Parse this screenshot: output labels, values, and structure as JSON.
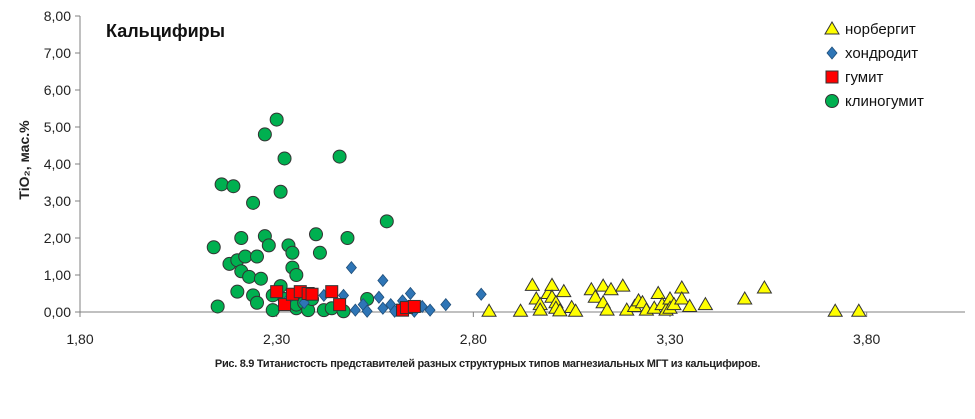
{
  "chart_data": {
    "type": "scatter",
    "title": "Кальцифиры",
    "ylabel": "TiO₂, мас.%",
    "xlabel": "",
    "xlim": [
      1.8,
      4.05
    ],
    "ylim": [
      0,
      8
    ],
    "xticks": [
      "1,80",
      "2,30",
      "2,80",
      "3,30",
      "3,80"
    ],
    "xtick_values": [
      1.8,
      2.3,
      2.8,
      3.3,
      3.8
    ],
    "yticks": [
      "0,00",
      "1,00",
      "2,00",
      "3,00",
      "4,00",
      "5,00",
      "6,00",
      "7,00",
      "8,00"
    ],
    "ytick_values": [
      0,
      1,
      2,
      3,
      4,
      5,
      6,
      7,
      8
    ],
    "grid": false,
    "legend_position": "top-right",
    "series": [
      {
        "name": "норбергит",
        "marker": "triangle",
        "color": "#ffff00",
        "points": [
          [
            2.84,
            0.02
          ],
          [
            2.92,
            0.02
          ],
          [
            2.95,
            0.72
          ],
          [
            2.96,
            0.35
          ],
          [
            2.97,
            0.2
          ],
          [
            2.97,
            0.05
          ],
          [
            2.99,
            0.5
          ],
          [
            3.0,
            0.72
          ],
          [
            3.0,
            0.4
          ],
          [
            3.01,
            0.25
          ],
          [
            3.01,
            0.1
          ],
          [
            3.02,
            0.03
          ],
          [
            3.03,
            0.55
          ],
          [
            3.05,
            0.12
          ],
          [
            3.06,
            0.02
          ],
          [
            3.1,
            0.6
          ],
          [
            3.11,
            0.4
          ],
          [
            3.13,
            0.7
          ],
          [
            3.13,
            0.25
          ],
          [
            3.14,
            0.05
          ],
          [
            3.15,
            0.6
          ],
          [
            3.18,
            0.7
          ],
          [
            3.19,
            0.05
          ],
          [
            3.21,
            0.15
          ],
          [
            3.22,
            0.3
          ],
          [
            3.23,
            0.25
          ],
          [
            3.24,
            0.05
          ],
          [
            3.26,
            0.1
          ],
          [
            3.27,
            0.5
          ],
          [
            3.28,
            0.2
          ],
          [
            3.29,
            0.05
          ],
          [
            3.3,
            0.35
          ],
          [
            3.3,
            0.1
          ],
          [
            3.31,
            0.2
          ],
          [
            3.33,
            0.65
          ],
          [
            3.33,
            0.35
          ],
          [
            3.35,
            0.15
          ],
          [
            3.39,
            0.2
          ],
          [
            3.49,
            0.35
          ],
          [
            3.54,
            0.65
          ],
          [
            3.72,
            0.02
          ],
          [
            3.78,
            0.02
          ]
        ]
      },
      {
        "name": "хондродит",
        "marker": "diamond",
        "color": "#2e75b6",
        "points": [
          [
            2.33,
            0.35
          ],
          [
            2.37,
            0.25
          ],
          [
            2.42,
            0.45
          ],
          [
            2.47,
            0.45
          ],
          [
            2.49,
            1.2
          ],
          [
            2.5,
            0.05
          ],
          [
            2.52,
            0.2
          ],
          [
            2.53,
            0.02
          ],
          [
            2.56,
            0.4
          ],
          [
            2.57,
            0.1
          ],
          [
            2.57,
            0.85
          ],
          [
            2.59,
            0.2
          ],
          [
            2.6,
            0.02
          ],
          [
            2.62,
            0.3
          ],
          [
            2.63,
            0.1
          ],
          [
            2.64,
            0.5
          ],
          [
            2.65,
            0.02
          ],
          [
            2.67,
            0.15
          ],
          [
            2.69,
            0.05
          ],
          [
            2.73,
            0.2
          ],
          [
            2.82,
            0.48
          ]
        ]
      },
      {
        "name": "гумит",
        "marker": "square",
        "color": "#ff0000",
        "points": [
          [
            2.3,
            0.55
          ],
          [
            2.32,
            0.2
          ],
          [
            2.34,
            0.48
          ],
          [
            2.36,
            0.55
          ],
          [
            2.38,
            0.5
          ],
          [
            2.39,
            0.48
          ],
          [
            2.44,
            0.55
          ],
          [
            2.46,
            0.2
          ],
          [
            2.62,
            0.05
          ],
          [
            2.63,
            0.12
          ],
          [
            2.65,
            0.15
          ]
        ]
      },
      {
        "name": "клиногумит",
        "marker": "circle",
        "color": "#00b050",
        "points": [
          [
            2.14,
            1.75
          ],
          [
            2.15,
            0.15
          ],
          [
            2.16,
            3.45
          ],
          [
            2.18,
            1.3
          ],
          [
            2.19,
            3.4
          ],
          [
            2.2,
            1.4
          ],
          [
            2.2,
            0.55
          ],
          [
            2.21,
            2.0
          ],
          [
            2.21,
            1.1
          ],
          [
            2.22,
            1.5
          ],
          [
            2.23,
            0.95
          ],
          [
            2.24,
            0.45
          ],
          [
            2.24,
            2.95
          ],
          [
            2.25,
            0.25
          ],
          [
            2.25,
            1.5
          ],
          [
            2.26,
            0.9
          ],
          [
            2.27,
            2.05
          ],
          [
            2.27,
            4.8
          ],
          [
            2.28,
            1.8
          ],
          [
            2.29,
            0.05
          ],
          [
            2.29,
            0.45
          ],
          [
            2.3,
            5.2
          ],
          [
            2.31,
            0.7
          ],
          [
            2.31,
            3.25
          ],
          [
            2.32,
            4.15
          ],
          [
            2.32,
            0.35
          ],
          [
            2.33,
            1.8
          ],
          [
            2.34,
            1.2
          ],
          [
            2.34,
            1.6
          ],
          [
            2.35,
            0.1
          ],
          [
            2.35,
            1.0
          ],
          [
            2.35,
            0.2
          ],
          [
            2.37,
            0.25
          ],
          [
            2.38,
            0.05
          ],
          [
            2.39,
            0.35
          ],
          [
            2.4,
            2.1
          ],
          [
            2.41,
            1.6
          ],
          [
            2.42,
            0.05
          ],
          [
            2.44,
            0.1
          ],
          [
            2.46,
            4.2
          ],
          [
            2.47,
            0.02
          ],
          [
            2.48,
            2.0
          ],
          [
            2.53,
            0.35
          ],
          [
            2.58,
            2.45
          ]
        ]
      }
    ]
  },
  "caption": "Рис. 8.9 Титанистость  представителей  разных  структурных  типов  магнезиальных  МГТ  из  кальцифиров."
}
